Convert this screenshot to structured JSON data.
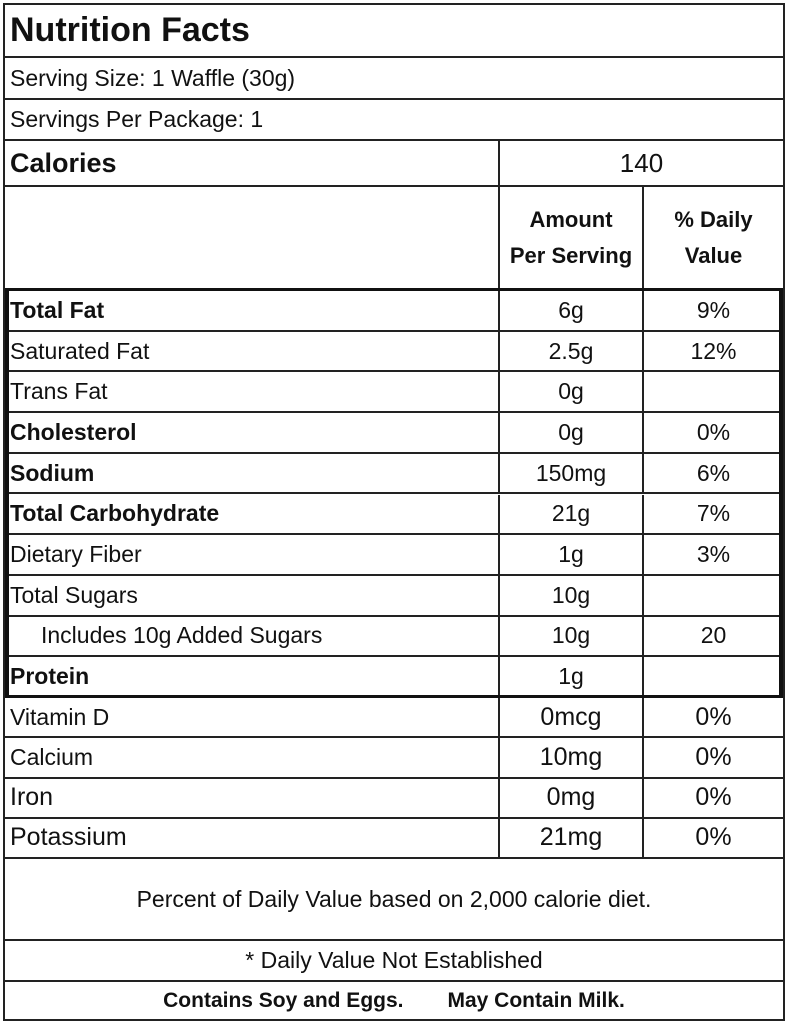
{
  "title": "Nutrition Facts",
  "serving_size": "Serving Size: 1 Waffle (30g)",
  "servings_per_package": "Servings Per Package: 1",
  "calories": {
    "label": "Calories",
    "value": "140"
  },
  "columns": {
    "amount": "Amount\nPer Serving",
    "daily_value": "% Daily\nValue"
  },
  "nutrients": [
    {
      "name": "Total Fat",
      "amount": "6g",
      "dv": "9%"
    },
    {
      "name": "Saturated Fat",
      "amount": "2.5g",
      "dv": "12%"
    },
    {
      "name": "Trans Fat",
      "amount": "0g",
      "dv": ""
    },
    {
      "name": "Cholesterol",
      "amount": "0g",
      "dv": "0%"
    },
    {
      "name": "Sodium",
      "amount": "150mg",
      "dv": "6%"
    },
    {
      "name": "Total Carbohydrate",
      "amount": "21g",
      "dv": "7%"
    },
    {
      "name": "Dietary Fiber",
      "amount": "1g",
      "dv": "3%"
    },
    {
      "name": "Total Sugars",
      "amount": "10g",
      "dv": ""
    },
    {
      "name": "Includes 10g Added Sugars",
      "amount": "10g",
      "dv": "20"
    },
    {
      "name": "Protein",
      "amount": "1g",
      "dv": ""
    }
  ],
  "vitamins": [
    {
      "name": "Vitamin D",
      "amount": "0mcg",
      "dv": "0%"
    },
    {
      "name": "Calcium",
      "amount": "10mg",
      "dv": "0%"
    },
    {
      "name": "Iron",
      "amount": "0mg",
      "dv": "0%"
    },
    {
      "name": "Potassium",
      "amount": "21mg",
      "dv": "0%"
    }
  ],
  "footnote": "Percent of Daily Value based on 2,000 calorie diet.",
  "not_established": "* Daily Value Not Established",
  "allergens": {
    "contains": "Contains Soy and Eggs.",
    "may_contain": "May Contain Milk."
  }
}
